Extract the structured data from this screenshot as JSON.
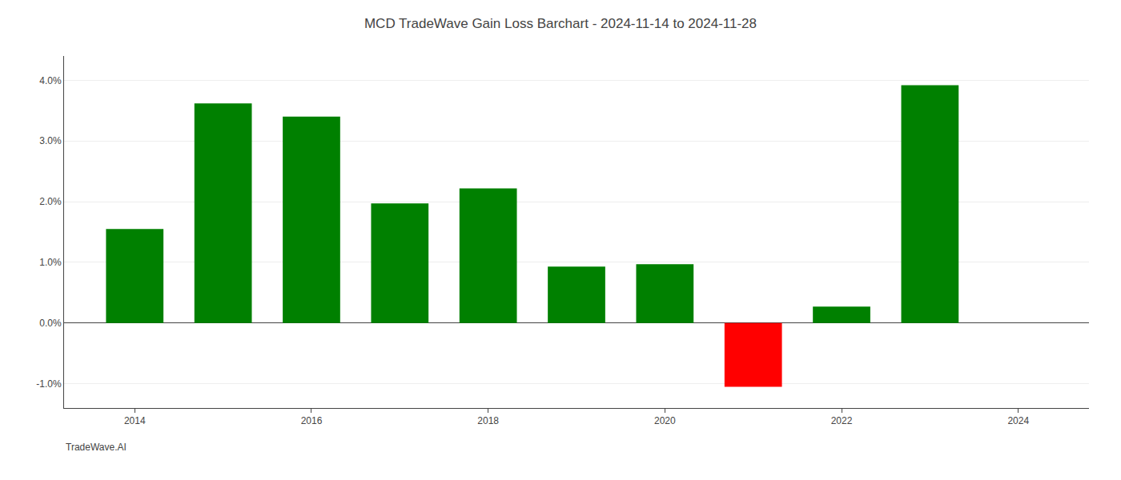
{
  "chart_data": {
    "type": "bar",
    "title": "MCD TradeWave Gain Loss Barchart - 2024-11-14 to 2024-11-28",
    "annotations": [
      "TradeWave.AI"
    ],
    "x": [
      2014,
      2015,
      2016,
      2017,
      2018,
      2019,
      2020,
      2021,
      2022,
      2023
    ],
    "values": [
      1.55,
      3.62,
      3.4,
      1.97,
      2.22,
      0.93,
      0.97,
      -1.05,
      0.27,
      3.92
    ],
    "colors": [
      "#008000",
      "#008000",
      "#008000",
      "#008000",
      "#008000",
      "#008000",
      "#008000",
      "#ff0000",
      "#008000",
      "#008000"
    ],
    "xlim": [
      2013.2,
      2024.8
    ],
    "xticks": [
      2014,
      2016,
      2018,
      2020,
      2022,
      2024
    ],
    "ylim": [
      -1.4,
      4.4
    ],
    "yticks": [
      {
        "value": -1.0,
        "label": "-1.0%"
      },
      {
        "value": 0.0,
        "label": "0.0%"
      },
      {
        "value": 1.0,
        "label": "1.0%"
      },
      {
        "value": 2.0,
        "label": "2.0%"
      },
      {
        "value": 3.0,
        "label": "3.0%"
      },
      {
        "value": 4.0,
        "label": "4.0%"
      }
    ],
    "grid": true
  }
}
